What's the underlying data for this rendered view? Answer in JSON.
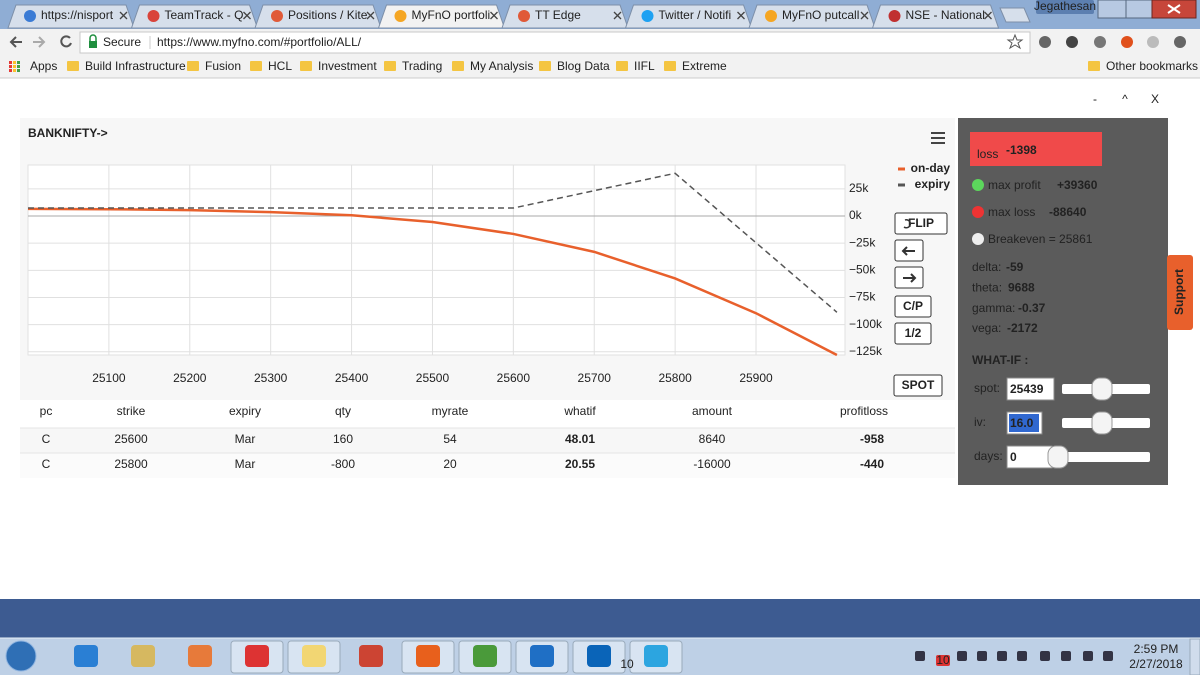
{
  "browser": {
    "tabs": [
      "https://nisport",
      "TeamTrack - Q",
      "Positions / Kite",
      "MyFnO portfoli",
      "TT Edge",
      "Twitter / Notifi",
      "MyFnO putcall",
      "NSE - National"
    ],
    "window_user": "Jegathesan",
    "secure": "Secure",
    "url": "https://www.myfno.com/#portfolio/ALL/",
    "bookmarks": [
      "Apps",
      "Build Infrastructure",
      "Fusion",
      "HCL",
      "Investment",
      "Trading",
      "My Analysis",
      "Blog Data",
      "IIFL",
      "Extreme"
    ],
    "other_bookmarks": "Other bookmarks"
  },
  "window_controls": [
    "-",
    "^",
    "X"
  ],
  "chart_data": {
    "type": "line",
    "title": "BANKNIFTY->",
    "x": [
      25000,
      25100,
      25200,
      25300,
      25400,
      25500,
      25600,
      25700,
      25800,
      25900,
      26000
    ],
    "series": [
      {
        "name": "on-day",
        "color": "#e8602c",
        "values": [
          6600,
          6300,
          5400,
          3600,
          700,
          -5500,
          -16500,
          -33000,
          -57500,
          -89500,
          -128000
        ]
      },
      {
        "name": "expiry",
        "color": "#555555",
        "values": [
          7360,
          7360,
          7360,
          7360,
          7360,
          7360,
          7360,
          23360,
          39360,
          -24640,
          -88640
        ]
      }
    ],
    "xlim": [
      25000,
      26010
    ],
    "ylim": [
      -128000,
      47000
    ],
    "xticks": [
      25100,
      25200,
      25300,
      25400,
      25500,
      25600,
      25700,
      25800,
      25900
    ],
    "yticks": [
      {
        "value": 25000,
        "label": "25k"
      },
      {
        "value": 0,
        "label": "0k"
      },
      {
        "value": -25000,
        "label": "−25k"
      },
      {
        "value": -50000,
        "label": "−50k"
      },
      {
        "value": -75000,
        "label": "−75k"
      },
      {
        "value": -100000,
        "label": "−100k"
      },
      {
        "value": -125000,
        "label": "−125k"
      }
    ],
    "grid": true
  },
  "controls": {
    "flip": "FLIP",
    "cp": "C/P",
    "half": "1/2",
    "spot": "SPOT"
  },
  "table": {
    "columns": [
      "pc",
      "strike",
      "expiry",
      "qty",
      "myrate",
      "whatif",
      "amount",
      "profitloss"
    ],
    "rows": [
      [
        "C",
        25600,
        "Mar",
        160,
        54,
        48.01,
        8640,
        -958
      ],
      [
        "C",
        25800,
        "Mar",
        -800,
        20,
        20.55,
        -16000,
        -440
      ]
    ]
  },
  "panel": {
    "loss_label": "loss",
    "loss": -1398,
    "max_profit_label": "max profit",
    "max_profit": "+39360",
    "max_loss_label": "max loss",
    "max_loss": -88640,
    "breakeven": "Breakeven = 25861",
    "greeks": [
      {
        "label": "delta:",
        "value": -59
      },
      {
        "label": "theta:",
        "value": 9688
      },
      {
        "label": "gamma:",
        "value": -0.37
      },
      {
        "label": "vega:",
        "value": -2172
      }
    ],
    "what_if": "WHAT-IF :",
    "inputs": [
      {
        "label": "spot:",
        "value": 25439
      },
      {
        "label": "iv:",
        "value": "16.0"
      },
      {
        "label": "days:",
        "value": 0
      }
    ],
    "support": "Support"
  },
  "taskbar": {
    "time": "2:59 PM",
    "date": "2/27/2018",
    "badges": [
      "10",
      "10"
    ]
  }
}
